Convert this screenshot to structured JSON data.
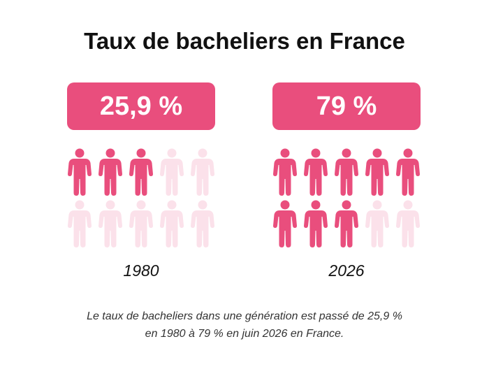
{
  "title": "Taux de bacheliers en France",
  "colors": {
    "accent": "#e94e7d",
    "faded": "#fbe1ea",
    "pill_text": "#ffffff"
  },
  "chart_data": {
    "type": "pictogram",
    "title": "Taux de bacheliers en France",
    "icon": "person-icon",
    "icons_per_panel": 10,
    "panels": [
      {
        "year": "1980",
        "value_label": "25,9 %",
        "value": 25.9,
        "filled_icons": 3
      },
      {
        "year": "2026",
        "value_label": "79 %",
        "value": 79,
        "filled_icons": 8
      }
    ]
  },
  "caption_lines": [
    "Le taux de bacheliers dans une génération est passé de 25,9 %",
    "en 1980 à 79 % en juin 2026 en France."
  ]
}
